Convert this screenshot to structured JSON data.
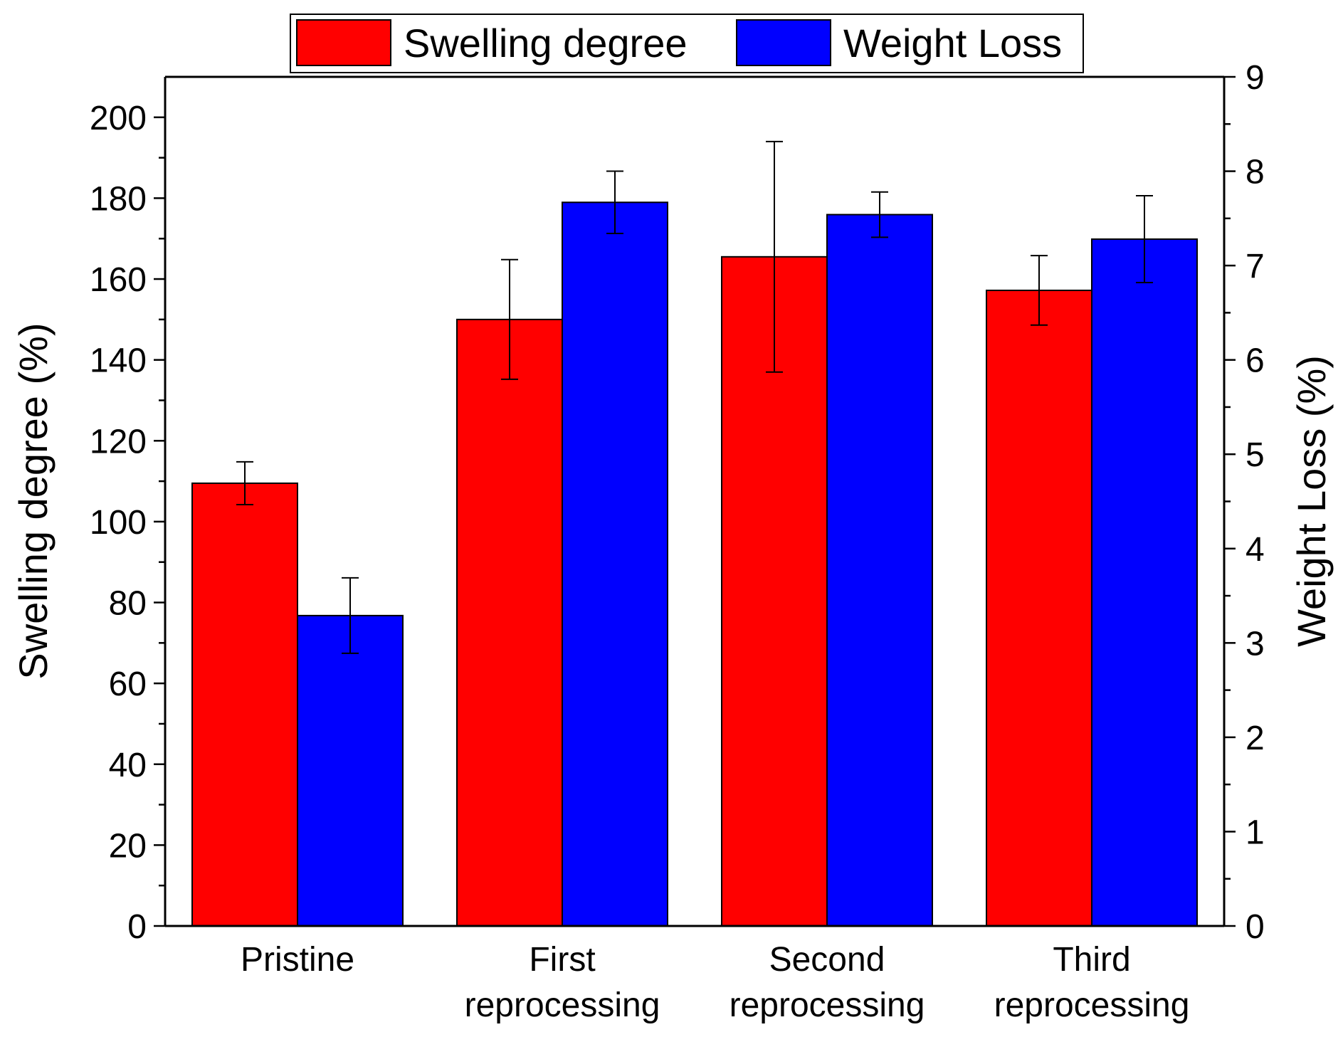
{
  "chart_data": {
    "type": "bar",
    "categories": [
      [
        "Pristine"
      ],
      [
        "First",
        "reprocessing"
      ],
      [
        "Second",
        "reprocessing"
      ],
      [
        "Third",
        "reprocessing"
      ]
    ],
    "series": [
      {
        "name": "Swelling degree",
        "axis": "left",
        "color": "#ff0000",
        "values": [
          109.5,
          150,
          165.5,
          157.2
        ],
        "errors": [
          5.3,
          14.8,
          28.5,
          8.6
        ]
      },
      {
        "name": "Weight Loss",
        "axis": "right",
        "color": "#0000ff",
        "values": [
          3.29,
          7.67,
          7.54,
          7.28
        ],
        "errors": [
          0.4,
          0.33,
          0.24,
          0.46
        ]
      }
    ],
    "ylabel": "Swelling degree (%)",
    "ylabel_right": "Weight Loss (%)",
    "ylim": [
      0,
      210
    ],
    "ylim_right": [
      0,
      9
    ],
    "yticks": [
      0,
      20,
      40,
      60,
      80,
      100,
      120,
      140,
      160,
      180,
      200
    ],
    "yticks_right": [
      0,
      1,
      2,
      3,
      4,
      5,
      6,
      7,
      8,
      9
    ],
    "legend": [
      "Swelling degree",
      "Weight Loss"
    ],
    "legend_position": "top-center"
  }
}
